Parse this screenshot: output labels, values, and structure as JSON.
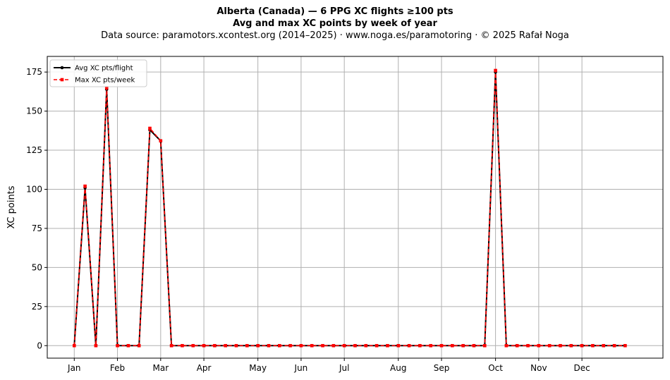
{
  "chart_data": {
    "type": "line",
    "title": "Alberta (Canada)  —  6 PPG XC flights ≥100 pts",
    "subtitle": "Avg and max XC points by week of year",
    "source": "Data source: paramotors.xcontest.org (2014–2025)  ·  www.noga.es/paramotoring  ·  © 2025 Rafał Noga",
    "xlabel": "",
    "ylabel": "XC points",
    "xlim": [
      -2.5,
      54.5
    ],
    "ylim": [
      -8,
      185
    ],
    "x_ticks": [
      {
        "label": "Jan",
        "week": 0
      },
      {
        "label": "Feb",
        "week": 4
      },
      {
        "label": "Mar",
        "week": 8
      },
      {
        "label": "Apr",
        "week": 12
      },
      {
        "label": "May",
        "week": 17
      },
      {
        "label": "Jun",
        "week": 21
      },
      {
        "label": "Jul",
        "week": 25
      },
      {
        "label": "Aug",
        "week": 30
      },
      {
        "label": "Sep",
        "week": 34
      },
      {
        "label": "Oct",
        "week": 39
      },
      {
        "label": "Nov",
        "week": 43
      },
      {
        "label": "Dec",
        "week": 47
      }
    ],
    "y_ticks": [
      0,
      25,
      50,
      75,
      100,
      125,
      150,
      175
    ],
    "grid": true,
    "legend_position": "top-left",
    "x": [
      0,
      1,
      2,
      3,
      4,
      5,
      6,
      7,
      8,
      9,
      10,
      11,
      12,
      13,
      14,
      15,
      16,
      17,
      18,
      19,
      20,
      21,
      22,
      23,
      24,
      25,
      26,
      27,
      28,
      29,
      30,
      31,
      32,
      33,
      34,
      35,
      36,
      37,
      38,
      39,
      40,
      41,
      42,
      43,
      44,
      45,
      46,
      47,
      48,
      49,
      50,
      51
    ],
    "series": [
      {
        "name": "Avg XC pts/flight",
        "color": "#000000",
        "style": "solid",
        "marker": "circle",
        "values": [
          0,
          101,
          0,
          164,
          0,
          0,
          0,
          138,
          131,
          0,
          0,
          0,
          0,
          0,
          0,
          0,
          0,
          0,
          0,
          0,
          0,
          0,
          0,
          0,
          0,
          0,
          0,
          0,
          0,
          0,
          0,
          0,
          0,
          0,
          0,
          0,
          0,
          0,
          0,
          175,
          0,
          0,
          0,
          0,
          0,
          0,
          0,
          0,
          0,
          0,
          0,
          0
        ]
      },
      {
        "name": "Max XC pts/week",
        "color": "#ff0000",
        "style": "dashed",
        "marker": "square",
        "values": [
          0,
          102,
          0,
          165,
          0,
          0,
          0,
          139,
          131,
          0,
          0,
          0,
          0,
          0,
          0,
          0,
          0,
          0,
          0,
          0,
          0,
          0,
          0,
          0,
          0,
          0,
          0,
          0,
          0,
          0,
          0,
          0,
          0,
          0,
          0,
          0,
          0,
          0,
          0,
          176,
          0,
          0,
          0,
          0,
          0,
          0,
          0,
          0,
          0,
          0,
          0,
          0
        ]
      }
    ]
  }
}
